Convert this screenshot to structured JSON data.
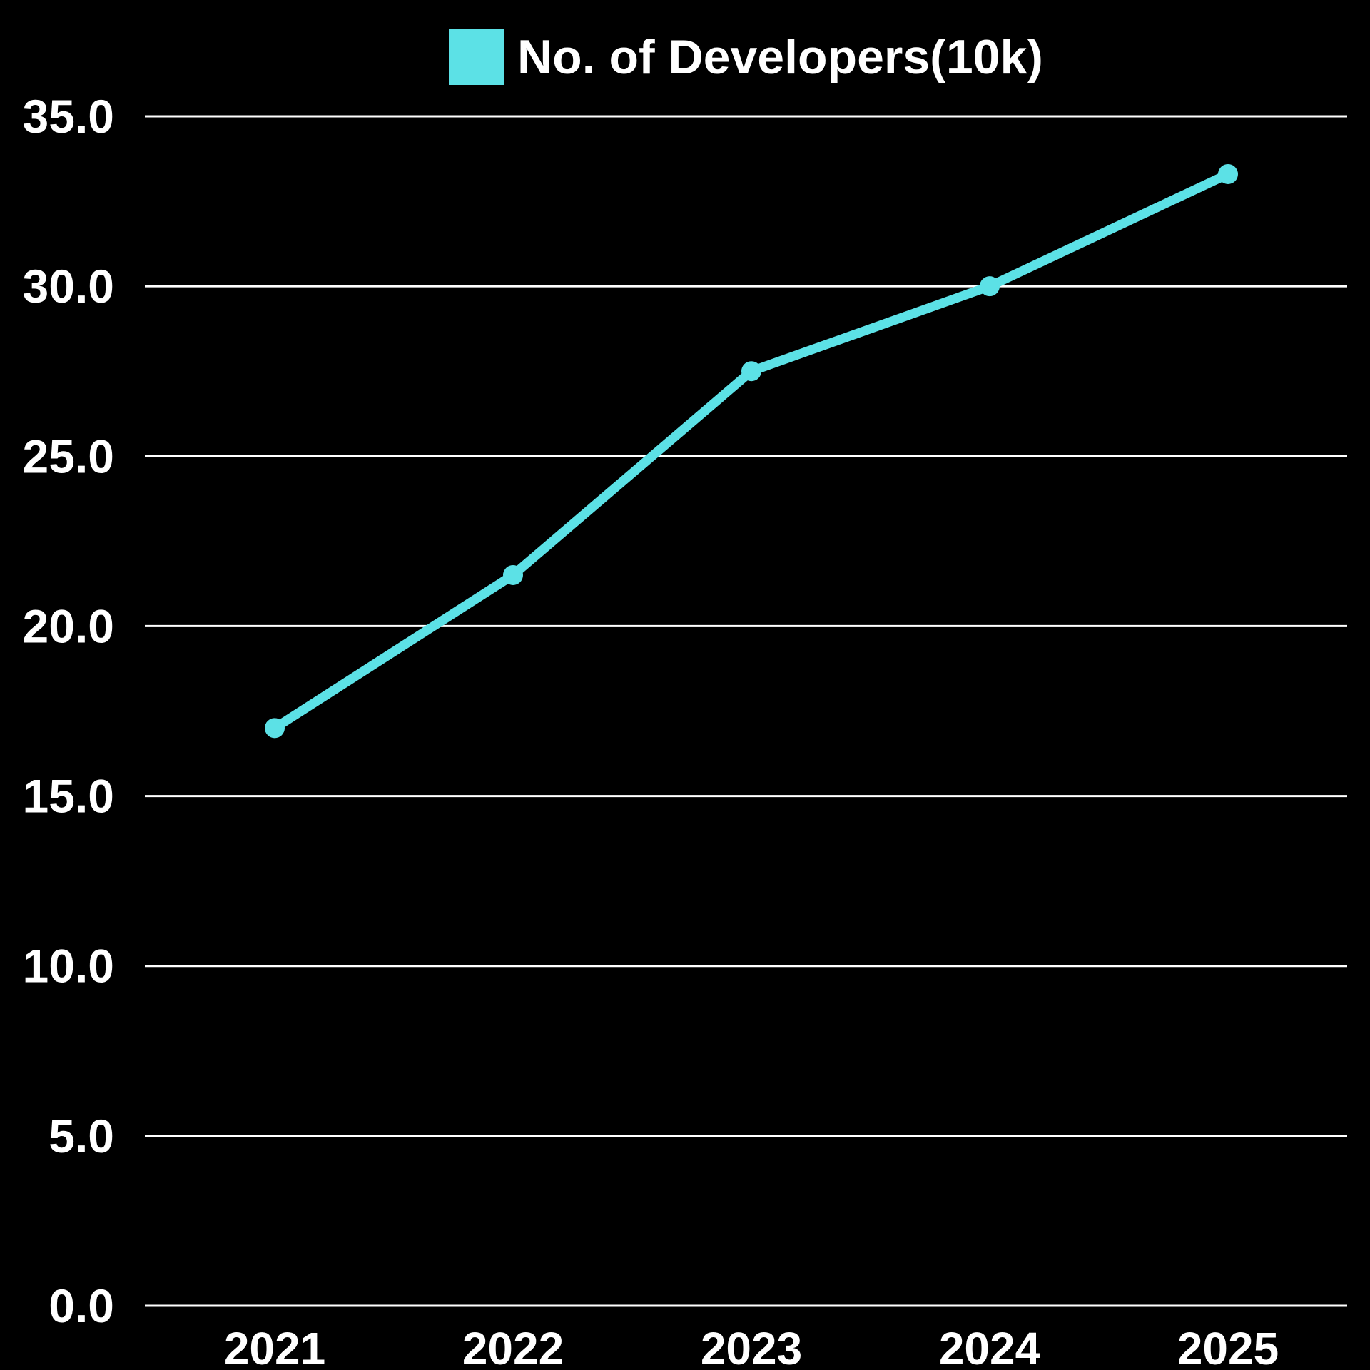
{
  "chart_data": {
    "type": "line",
    "title": "",
    "xlabel": "",
    "ylabel": "",
    "categories": [
      "2021",
      "2022",
      "2023",
      "2024",
      "2025"
    ],
    "series": [
      {
        "name": "No. of Developers(10k)",
        "values": [
          17.0,
          21.5,
          27.5,
          30.0,
          33.3
        ]
      }
    ],
    "ylim": [
      0,
      35
    ],
    "ytick_step": 5,
    "ytick_decimals": 1,
    "grid": "horizontal-only",
    "legend_position": "top-center",
    "marker": "circle",
    "colors": {
      "background": "#000000",
      "line": "#5CE1E6",
      "gridline": "#FFFFFF",
      "text": "#FFFFFF"
    }
  }
}
